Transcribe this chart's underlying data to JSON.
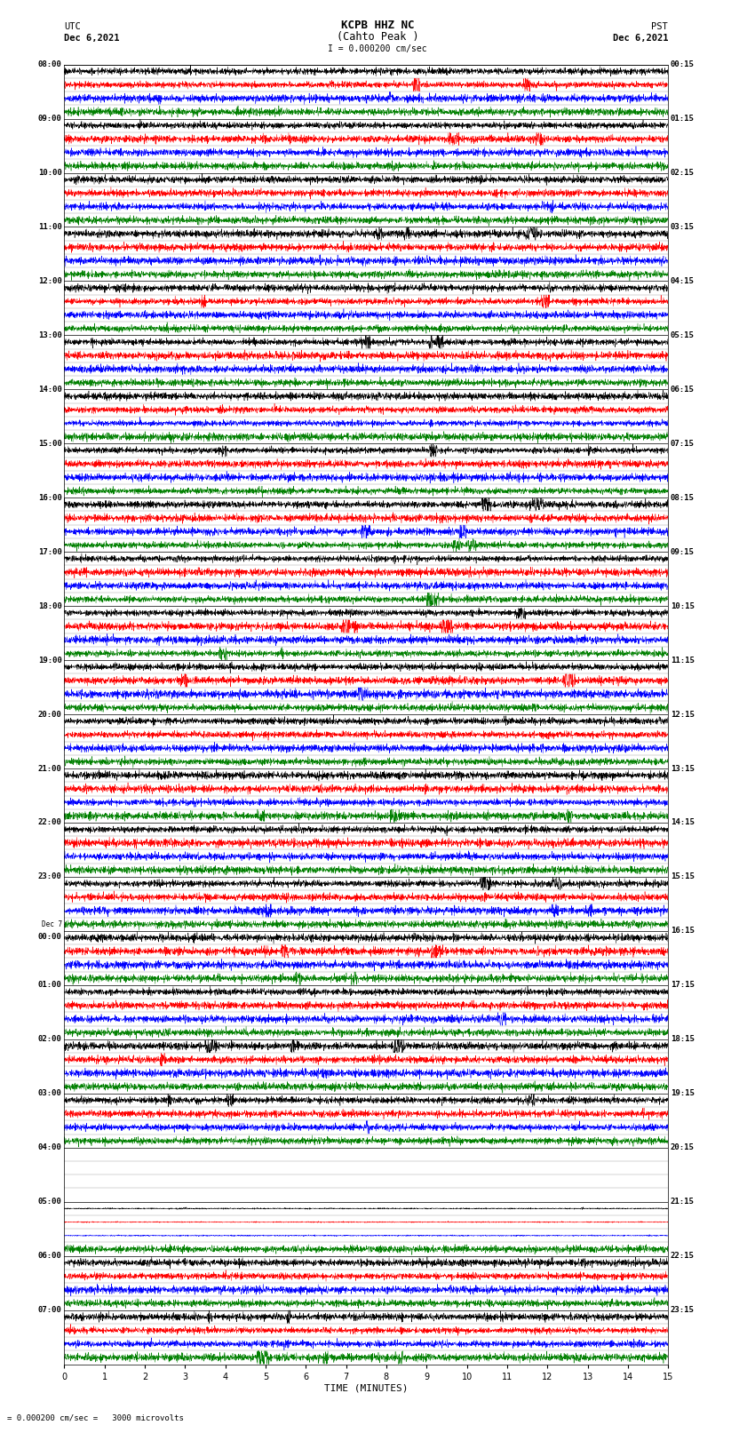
{
  "title_line1": "KCPB HHZ NC",
  "title_line2": "(Cahto Peak )",
  "scale_text": "I = 0.000200 cm/sec",
  "bottom_scale_text": "= 0.000200 cm/sec =   3000 microvolts",
  "left_label_line1": "UTC",
  "left_label_line2": "Dec 6,2021",
  "right_label_line1": "PST",
  "right_label_line2": "Dec 6,2021",
  "xlabel": "TIME (MINUTES)",
  "colors": [
    "black",
    "red",
    "blue",
    "green"
  ],
  "background": "white",
  "traces_per_row": 4,
  "left_times_utc": [
    "08:00",
    "09:00",
    "10:00",
    "11:00",
    "12:00",
    "13:00",
    "14:00",
    "15:00",
    "16:00",
    "17:00",
    "18:00",
    "19:00",
    "20:00",
    "21:00",
    "22:00",
    "23:00",
    "Dec 7\n00:00",
    "01:00",
    "02:00",
    "03:00",
    "04:00",
    "05:00",
    "06:00",
    "07:00"
  ],
  "right_times_pst": [
    "00:15",
    "01:15",
    "02:15",
    "03:15",
    "04:15",
    "05:15",
    "06:15",
    "07:15",
    "08:15",
    "09:15",
    "10:15",
    "11:15",
    "12:15",
    "13:15",
    "14:15",
    "15:15",
    "16:15",
    "17:15",
    "18:15",
    "19:15",
    "20:15",
    "21:15",
    "22:15",
    "23:15"
  ],
  "quiet_rows": [
    20
  ],
  "partial_rows": [
    21
  ],
  "fig_width": 8.5,
  "fig_height": 16.13,
  "dpi": 100,
  "xmin": 0,
  "xmax": 15,
  "xticks": [
    0,
    1,
    2,
    3,
    4,
    5,
    6,
    7,
    8,
    9,
    10,
    11,
    12,
    13,
    14,
    15
  ]
}
